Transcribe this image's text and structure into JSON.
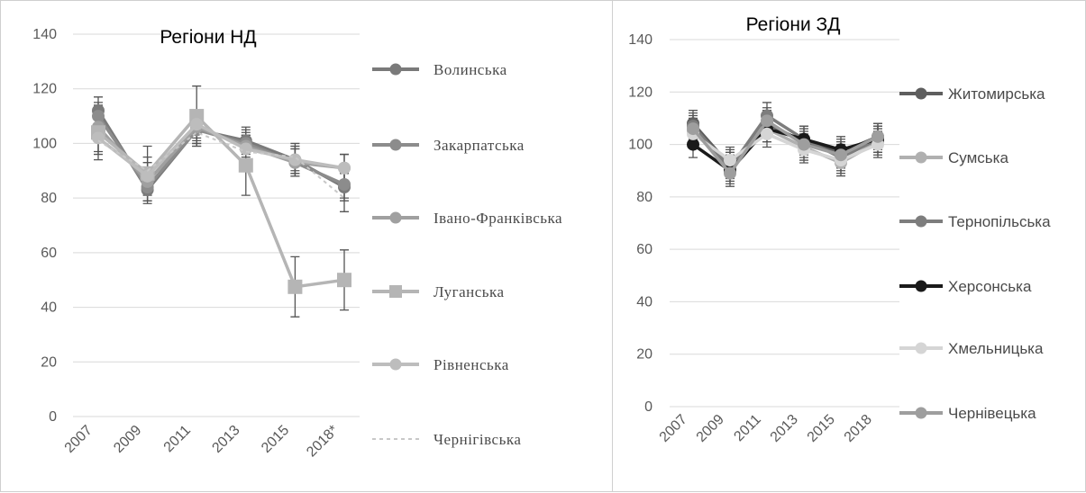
{
  "chart_data": [
    {
      "type": "line",
      "title": "Регіони НД",
      "categories": [
        "2007",
        "2009",
        "2011",
        "2013",
        "2015",
        "2018*"
      ],
      "ylim": [
        0,
        140
      ],
      "yticks": [
        "0",
        "20",
        "40",
        "60",
        "80",
        "100",
        "120",
        "140"
      ],
      "grid": true,
      "legend_position": "right",
      "series": [
        {
          "name": "Волинська",
          "values": [
            112,
            83,
            105,
            101,
            94,
            84
          ],
          "color": "#7a7a7a",
          "marker": "circle",
          "dash": false
        },
        {
          "name": "Закарпатська",
          "values": [
            110,
            84,
            105,
            100,
            93,
            85
          ],
          "color": "#8c8c8c",
          "marker": "circle",
          "dash": false
        },
        {
          "name": "Івано-Франківська",
          "values": [
            106,
            86,
            106,
            99,
            93,
            91
          ],
          "color": "#a0a0a0",
          "marker": "circle",
          "dash": false
        },
        {
          "name": "Луганська",
          "values": [
            104,
            89,
            110,
            92,
            47.5,
            50
          ],
          "color": "#b5b5b5",
          "marker": "square",
          "dash": false,
          "errors": [
            10,
            10,
            11,
            11,
            11,
            11
          ]
        },
        {
          "name": "Рівненська",
          "values": [
            102,
            88,
            107,
            98,
            94,
            91
          ],
          "color": "#bdbdbd",
          "marker": "circle",
          "dash": false
        },
        {
          "name": "Чернігівська",
          "values": [
            101,
            90,
            104,
            97,
            95,
            80
          ],
          "color": "#c8c8c8",
          "marker": "none",
          "dash": true
        }
      ]
    },
    {
      "type": "line",
      "title": "Регіони ЗД",
      "categories": [
        "2007",
        "2009",
        "2011",
        "2013",
        "2015",
        "2018"
      ],
      "ylim": [
        0,
        140
      ],
      "yticks": [
        "0",
        "20",
        "40",
        "60",
        "80",
        "100",
        "120",
        "140"
      ],
      "grid": true,
      "legend_position": "right",
      "series": [
        {
          "name": "Житомирська",
          "values": [
            108,
            92,
            108,
            101,
            97,
            103
          ],
          "color": "#5e5e5e",
          "marker": "circle",
          "dash": false
        },
        {
          "name": "Сумська",
          "values": [
            105,
            93,
            106,
            99,
            93,
            101
          ],
          "color": "#b0b0b0",
          "marker": "circle",
          "dash": false
        },
        {
          "name": "Тернопільська",
          "values": [
            107,
            91,
            111,
            102,
            95,
            102
          ],
          "color": "#7d7d7d",
          "marker": "circle",
          "dash": false
        },
        {
          "name": "Херсонська",
          "values": [
            100,
            90,
            106,
            102,
            98,
            102
          ],
          "color": "#1a1a1a",
          "marker": "circle",
          "dash": false
        },
        {
          "name": "Хмельницька",
          "values": [
            104,
            94,
            104,
            98,
            94,
            100
          ],
          "color": "#d5d5d5",
          "marker": "circle",
          "dash": false
        },
        {
          "name": "Чернівецька",
          "values": [
            106,
            89,
            109,
            100,
            96,
            103
          ],
          "color": "#9e9e9e",
          "marker": "circle",
          "dash": false
        }
      ]
    }
  ]
}
